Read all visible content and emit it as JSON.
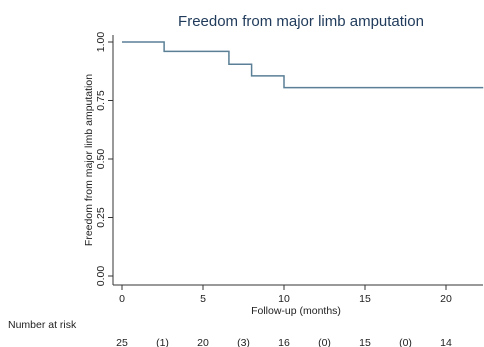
{
  "chart_data": {
    "type": "line",
    "title": "Freedom from major limb amputation",
    "xlabel": "Follow-up (months)",
    "ylabel": "Freedom from major limb amputation",
    "xlim": [
      0,
      22.5
    ],
    "ylim": [
      0,
      1
    ],
    "x_ticks": [
      "0",
      "5",
      "10",
      "15",
      "20"
    ],
    "y_ticks": [
      "0.00",
      "0.25",
      "0.50",
      "0.75",
      "1.00"
    ],
    "grid": false,
    "legend": "none",
    "line_color": "#5a7f96",
    "series": [
      {
        "x": [
          0,
          2.6,
          2.6,
          6.6,
          6.6,
          8,
          8,
          10,
          10,
          22.3
        ],
        "y": [
          1.0,
          1.0,
          0.96,
          0.96,
          0.905,
          0.905,
          0.855,
          0.855,
          0.805,
          0.805
        ]
      }
    ],
    "risk_table": {
      "label": "Number at risk",
      "entries": [
        {
          "x": 0,
          "text": "25"
        },
        {
          "x": 2.5,
          "text": "(1)"
        },
        {
          "x": 5,
          "text": "20"
        },
        {
          "x": 7.5,
          "text": "(3)"
        },
        {
          "x": 10,
          "text": "16"
        },
        {
          "x": 12.5,
          "text": "(0)"
        },
        {
          "x": 15,
          "text": "15"
        },
        {
          "x": 17.5,
          "text": "(0)"
        },
        {
          "x": 20,
          "text": "14"
        }
      ]
    }
  }
}
